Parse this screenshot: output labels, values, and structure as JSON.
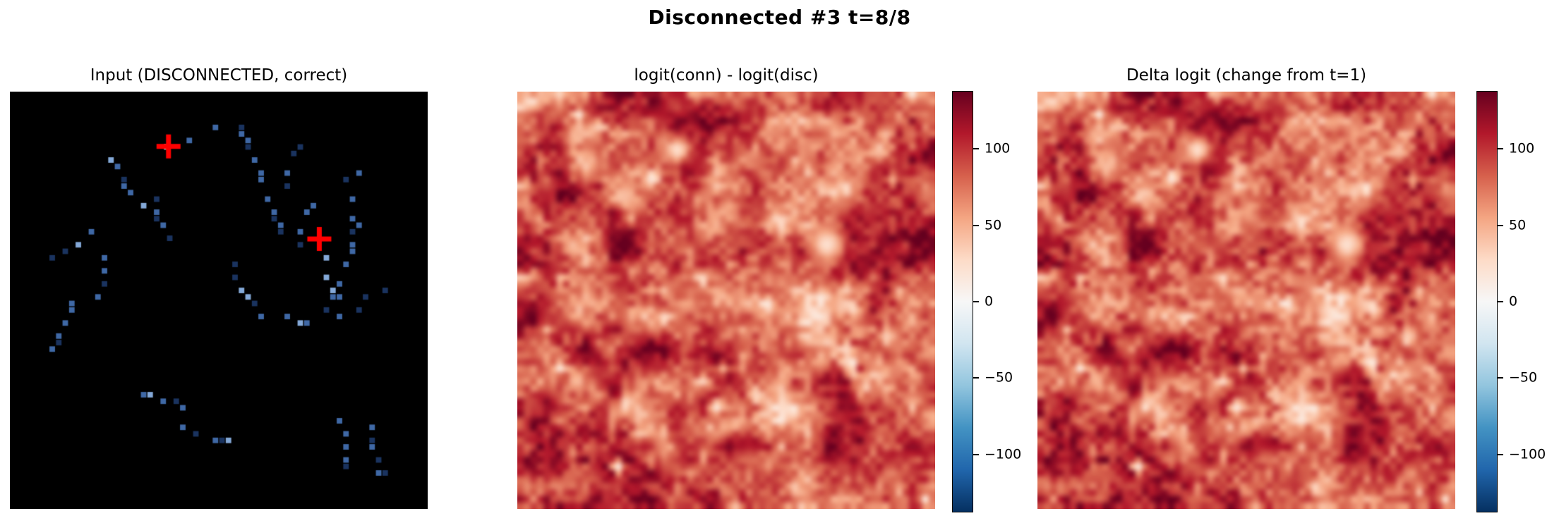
{
  "title": "Disconnected #3  t=8/8",
  "panels": [
    {
      "id": "input",
      "title": "Input (DISCONNECTED, correct)"
    },
    {
      "id": "logit_diff",
      "title": "logit(conn) - logit(disc)"
    },
    {
      "id": "delta_logit",
      "title": "Delta logit (change from t=1)"
    }
  ],
  "colorbar": {
    "vmin": -138,
    "vmax": 138,
    "ticks": [
      {
        "value": 100,
        "label": "100"
      },
      {
        "value": 50,
        "label": "50"
      },
      {
        "value": 0,
        "label": "0"
      },
      {
        "value": -50,
        "label": "−50"
      },
      {
        "value": -100,
        "label": "−100"
      }
    ]
  },
  "colors": {
    "background": "#ffffff",
    "text": "#000000",
    "input_background": "#000000",
    "marker_red": "#ff0000",
    "white_cell": "#e7e3da",
    "dot_shades": [
      "#1a335f",
      "#3f68a5",
      "#84a9d8"
    ],
    "rdbu_r_anchors": [
      [
        0.0,
        "#053061"
      ],
      [
        0.1,
        "#2166ac"
      ],
      [
        0.2,
        "#4393c3"
      ],
      [
        0.3,
        "#92c5de"
      ],
      [
        0.4,
        "#d1e5f0"
      ],
      [
        0.5,
        "#f7f7f7"
      ],
      [
        0.6,
        "#fddbc7"
      ],
      [
        0.7,
        "#f4a582"
      ],
      [
        0.8,
        "#d6604c"
      ],
      [
        0.9,
        "#b2182b"
      ],
      [
        1.0,
        "#67001f"
      ]
    ]
  },
  "chart_data": [
    {
      "type": "scatter",
      "panel": "input",
      "title": "Input (DISCONNECTED, correct)",
      "grid_size": 64,
      "description": "64x64 occupancy grid on black; sparse blue cells trace two disconnected curved paths; two red plus markers at the probe endpoints; one white cell beneath the first marker",
      "markers": [
        {
          "x": 24.3,
          "y": 8.4
        },
        {
          "x": 47.4,
          "y": 22.6
        }
      ],
      "marker_style": {
        "shape": "plus",
        "size": 34,
        "thickness": 7
      },
      "white_cell": {
        "x": 23.6,
        "y": 8.0
      },
      "points": [
        [
          31,
          5,
          1
        ],
        [
          27,
          7,
          1
        ],
        [
          15,
          10,
          2
        ],
        [
          16,
          11,
          1
        ],
        [
          17,
          13,
          0
        ],
        [
          17,
          14,
          1
        ],
        [
          18,
          15,
          1
        ],
        [
          20,
          17,
          2
        ],
        [
          22,
          16,
          0
        ],
        [
          22,
          18,
          1
        ],
        [
          22,
          19,
          0
        ],
        [
          23,
          20,
          1
        ],
        [
          24,
          22,
          0
        ],
        [
          12,
          21,
          1
        ],
        [
          10,
          23,
          2
        ],
        [
          8,
          24,
          0
        ],
        [
          6,
          25,
          0
        ],
        [
          14,
          25,
          1
        ],
        [
          14,
          27,
          1
        ],
        [
          14,
          29,
          0
        ],
        [
          13,
          31,
          1
        ],
        [
          35,
          5,
          0
        ],
        [
          35,
          6,
          1
        ],
        [
          36,
          7,
          1
        ],
        [
          36,
          8,
          0
        ],
        [
          44,
          8,
          0
        ],
        [
          37,
          10,
          1
        ],
        [
          43,
          9,
          0
        ],
        [
          38,
          12,
          1
        ],
        [
          42,
          12,
          1
        ],
        [
          38,
          13,
          1
        ],
        [
          42,
          14,
          0
        ],
        [
          51,
          13,
          0
        ],
        [
          53,
          12,
          1
        ],
        [
          39,
          16,
          1
        ],
        [
          46,
          17,
          1
        ],
        [
          52,
          16,
          1
        ],
        [
          40,
          18,
          1
        ],
        [
          40,
          19,
          0
        ],
        [
          45,
          18,
          1
        ],
        [
          52,
          19,
          1
        ],
        [
          41,
          20,
          1
        ],
        [
          44,
          21,
          1
        ],
        [
          53,
          20,
          1
        ],
        [
          41,
          21,
          0
        ],
        [
          52,
          21,
          0
        ],
        [
          44,
          23,
          0
        ],
        [
          52,
          23,
          1
        ],
        [
          52,
          24,
          1
        ],
        [
          48,
          25,
          2
        ],
        [
          51,
          26,
          1
        ],
        [
          48,
          28,
          2
        ],
        [
          50,
          29,
          1
        ],
        [
          49,
          30,
          2
        ],
        [
          49,
          31,
          1
        ],
        [
          50,
          31,
          1
        ],
        [
          57,
          30,
          0
        ],
        [
          54,
          31,
          0
        ],
        [
          34,
          26,
          0
        ],
        [
          34,
          28,
          0
        ],
        [
          35,
          30,
          2
        ],
        [
          36,
          31,
          2
        ],
        [
          9,
          32,
          1
        ],
        [
          9,
          33,
          1
        ],
        [
          8,
          35,
          1
        ],
        [
          7,
          37,
          1
        ],
        [
          7,
          38,
          0
        ],
        [
          6,
          39,
          1
        ],
        [
          20,
          46,
          1
        ],
        [
          21,
          46,
          2
        ],
        [
          23,
          47,
          1
        ],
        [
          25,
          47,
          0
        ],
        [
          26,
          48,
          1
        ],
        [
          26,
          51,
          1
        ],
        [
          28,
          52,
          0
        ],
        [
          31,
          53,
          1
        ],
        [
          32,
          53,
          0
        ],
        [
          33,
          53,
          2
        ],
        [
          37,
          32,
          0
        ],
        [
          38,
          34,
          1
        ],
        [
          42,
          34,
          1
        ],
        [
          44,
          35,
          2
        ],
        [
          45,
          35,
          1
        ],
        [
          48,
          33,
          0
        ],
        [
          50,
          34,
          1
        ],
        [
          53,
          33,
          0
        ],
        [
          50,
          50,
          1
        ],
        [
          51,
          52,
          1
        ],
        [
          51,
          54,
          1
        ],
        [
          51,
          56,
          1
        ],
        [
          51,
          57,
          0
        ],
        [
          55,
          51,
          1
        ],
        [
          55,
          53,
          0
        ],
        [
          55,
          54,
          1
        ],
        [
          56,
          56,
          0
        ],
        [
          56,
          58,
          1
        ],
        [
          57,
          58,
          0
        ]
      ]
    },
    {
      "type": "heatmap",
      "panel": "logit_diff",
      "title": "logit(conn) - logit(disc)",
      "grid_size": 64,
      "colormap": "RdBu_r",
      "vmin": -138,
      "vmax": 138,
      "colorbar_ticks": [
        100,
        50,
        0,
        -50,
        -100
      ],
      "value_summary": "nearly all values strongly positive (~60 to 138, deep red) with scattered lighter cells ~30-60; two near-white minima ~20 at the endpoint-marker sites",
      "hotspots": [
        {
          "x": 24,
          "y": 8.5,
          "r": 1.6,
          "value": 24
        },
        {
          "x": 47,
          "y": 23.0,
          "r": 2.0,
          "value": 22
        }
      ],
      "texture": {
        "seed": 7,
        "base": 92,
        "row_tilt": 10,
        "clamp": [
          18,
          138
        ],
        "speckles": 70,
        "octaves": [
          {
            "res": 8,
            "amp": 30
          },
          {
            "res": 13,
            "amp": 26
          },
          {
            "res": 32,
            "amp": 22
          },
          {
            "res": 64,
            "amp": 16
          }
        ]
      }
    },
    {
      "type": "heatmap",
      "panel": "delta_logit",
      "title": "Delta logit (change from t=1)",
      "grid_size": 64,
      "colormap": "RdBu_r",
      "vmin": -138,
      "vmax": 138,
      "colorbar_ticks": [
        100,
        50,
        0,
        -50,
        -100
      ],
      "value_summary": "visually near-identical to the logit-difference map: strongly positive deep-red field with the same two near-white minima at the marker sites",
      "hotspots": [
        {
          "x": 24,
          "y": 8.5,
          "r": 1.6,
          "value": 24
        },
        {
          "x": 47,
          "y": 23.0,
          "r": 2.0,
          "value": 22
        }
      ],
      "texture": {
        "seed": 7,
        "base": 92,
        "row_tilt": 10,
        "clamp": [
          18,
          138
        ],
        "speckles": 70,
        "jitter_seed": 131,
        "jitter_amp": 8,
        "octaves": [
          {
            "res": 8,
            "amp": 30
          },
          {
            "res": 13,
            "amp": 26
          },
          {
            "res": 32,
            "amp": 22
          },
          {
            "res": 64,
            "amp": 16
          }
        ]
      }
    }
  ]
}
